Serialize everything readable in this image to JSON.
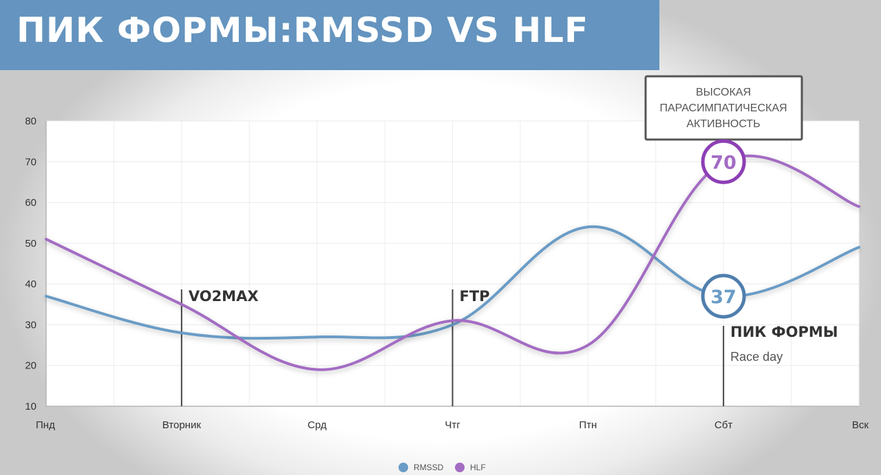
{
  "header": {
    "title": "ПИК ФОРМЫ:RMSSD VS HLF"
  },
  "chart_data": {
    "type": "line",
    "categories": [
      "Пнд",
      "Вторник",
      "Срд",
      "Чтг",
      "Птн",
      "Сбт",
      "Вск"
    ],
    "series": [
      {
        "name": "RMSSD",
        "color": "#6a9cc6",
        "values": [
          37,
          28,
          27,
          30,
          54,
          37,
          49
        ]
      },
      {
        "name": "HLF",
        "color": "#a36cc3",
        "values": [
          51,
          35,
          19,
          31,
          25,
          70,
          59
        ]
      }
    ],
    "yticks": [
      10,
      20,
      30,
      40,
      50,
      60,
      70,
      80
    ],
    "ylim": [
      10,
      80
    ],
    "grid": true,
    "legend_position": "bottom-center",
    "events": [
      {
        "category": "Вторник",
        "label": "VO2MAX"
      },
      {
        "category": "Чтг",
        "label": "FTP"
      },
      {
        "category": "Сбт",
        "label": "ПИК ФОРМЫ",
        "note": "Race day"
      }
    ],
    "highlights": [
      {
        "series": "HLF",
        "category": "Сбт",
        "label": "70"
      },
      {
        "series": "RMSSD",
        "category": "Сбт",
        "label": "37"
      }
    ],
    "callout": {
      "lines": [
        "ВЫСОКАЯ",
        "ПАРАСИМПАТИЧЕСКАЯ",
        "АКТИВНОСТЬ"
      ]
    }
  }
}
